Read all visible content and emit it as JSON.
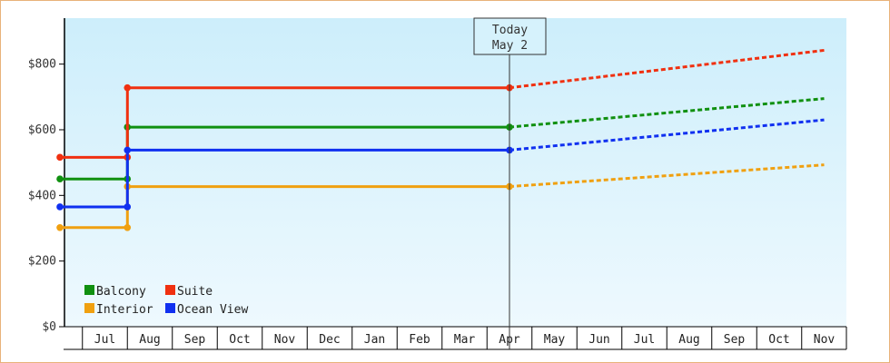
{
  "chart_data": {
    "type": "line",
    "title": "",
    "xlabel": "",
    "ylabel": "",
    "ylim": [
      0,
      940
    ],
    "yticks": [
      {
        "value": 0,
        "label": "$0"
      },
      {
        "value": 200,
        "label": "$200"
      },
      {
        "value": 400,
        "label": "$400"
      },
      {
        "value": 600,
        "label": "$600"
      },
      {
        "value": 800,
        "label": "$800"
      }
    ],
    "x_months": [
      "Jul",
      "Aug",
      "Sep",
      "Oct",
      "Nov",
      "Dec",
      "Jan",
      "Feb",
      "Mar",
      "Apr",
      "May",
      "Jun",
      "Jul",
      "Aug",
      "Sep",
      "Oct",
      "Nov"
    ],
    "xlim": [
      "Jun 15",
      "Nov 30 (next year)"
    ],
    "grid": false,
    "legend_position": "bottom-left",
    "today_marker": {
      "line1": "Today",
      "line2": "May 2",
      "x": 10.0
    },
    "series": [
      {
        "name": "Balcony",
        "color": "#109010",
        "actual": [
          [
            0,
            450
          ],
          [
            1.5,
            450
          ],
          [
            1.5,
            608
          ],
          [
            10.0,
            608
          ]
        ],
        "projected_end": [
          17.0,
          695
        ]
      },
      {
        "name": "Suite",
        "color": "#f03010",
        "actual": [
          [
            0,
            516
          ],
          [
            1.5,
            516
          ],
          [
            1.5,
            728
          ],
          [
            10.0,
            728
          ]
        ],
        "projected_end": [
          17.0,
          842
        ]
      },
      {
        "name": "Interior",
        "color": "#f0a010",
        "actual": [
          [
            0,
            302
          ],
          [
            1.5,
            302
          ],
          [
            1.5,
            427
          ],
          [
            10.0,
            427
          ]
        ],
        "projected_end": [
          17.0,
          493
        ]
      },
      {
        "name": "Ocean View",
        "color": "#1030f0",
        "actual": [
          [
            0,
            365
          ],
          [
            1.5,
            365
          ],
          [
            1.5,
            538
          ],
          [
            10.0,
            538
          ]
        ],
        "projected_end": [
          17.0,
          630
        ]
      }
    ],
    "legend_order": [
      "Balcony",
      "Suite",
      "Interior",
      "Ocean View"
    ]
  }
}
